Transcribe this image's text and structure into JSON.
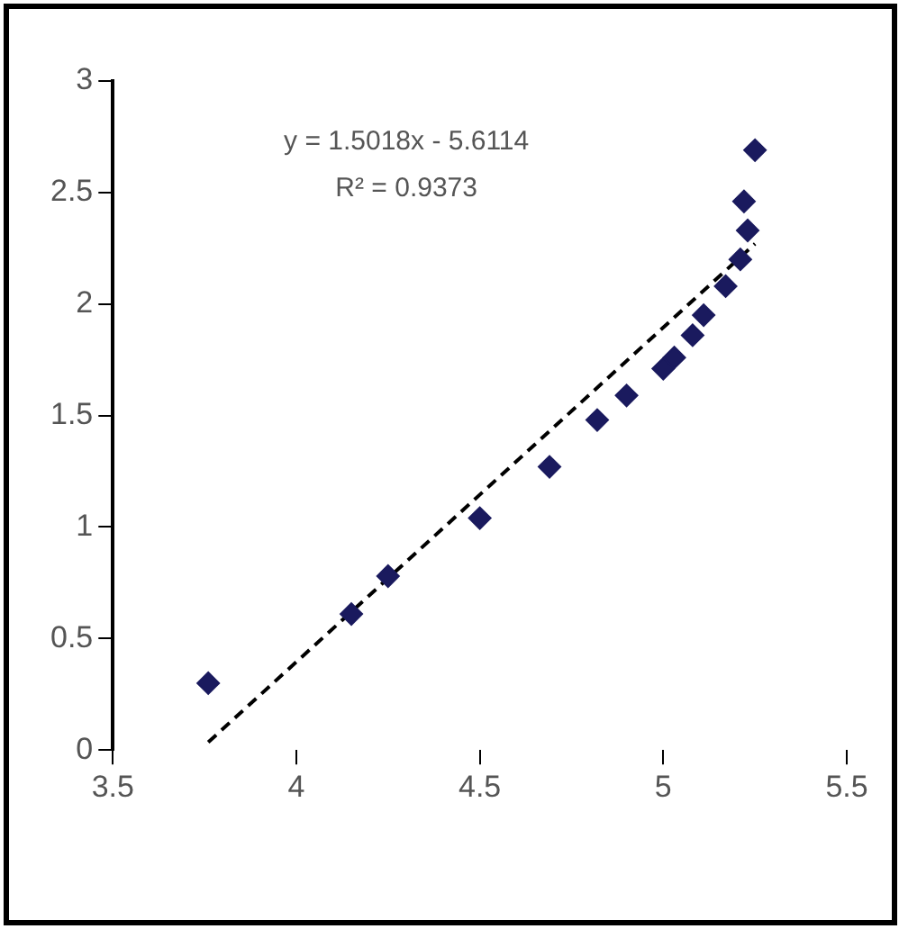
{
  "chart_data": {
    "type": "scatter",
    "x": [
      3.76,
      4.15,
      4.25,
      4.5,
      4.69,
      4.82,
      4.9,
      5.0,
      5.03,
      5.08,
      5.11,
      5.17,
      5.21,
      5.23,
      5.22,
      5.25
    ],
    "series": [
      {
        "color": "#1a1a5e",
        "values": [
          0.3,
          0.61,
          0.78,
          1.04,
          1.27,
          1.48,
          1.59,
          1.71,
          1.76,
          1.86,
          1.95,
          2.08,
          2.2,
          2.33,
          2.46,
          2.69
        ],
        "marker": "diamond"
      },
      {
        "type": "line",
        "color": "#000000",
        "x": [
          3.76,
          5.25
        ],
        "values": [
          0.035,
          2.27
        ],
        "line_style": "dashed",
        "marker": "none"
      }
    ],
    "xlim": [
      3.5,
      5.5
    ],
    "xticks": [
      3.5,
      4,
      4.5,
      5,
      5.5
    ],
    "ylim": [
      0,
      3
    ],
    "yticks": [
      0,
      0.5,
      1,
      1.5,
      2,
      2.5,
      3
    ],
    "annotations": [
      "y = 1.5018x - 5.6114",
      "R² = 0.9373"
    ],
    "grid": false,
    "legend": false
  }
}
